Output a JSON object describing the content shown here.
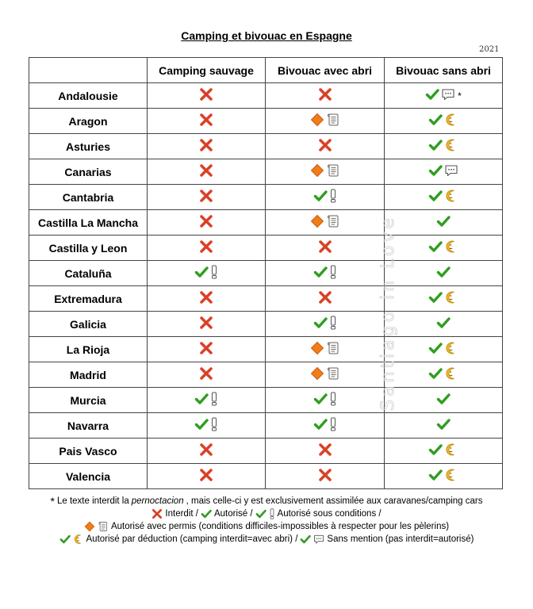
{
  "title": "Camping et bivouac en Espagne",
  "year": "2021",
  "headers": [
    "",
    "Camping sauvage",
    "Bivouac avec abri",
    "Bivouac sans abri"
  ],
  "rows": [
    {
      "region": "Andalousie",
      "cells": [
        [
          "cross"
        ],
        [
          "cross"
        ],
        [
          "check",
          "speech",
          "*"
        ]
      ]
    },
    {
      "region": "Aragon",
      "cells": [
        [
          "cross"
        ],
        [
          "diamond",
          "scroll"
        ],
        [
          "check",
          "moon"
        ]
      ]
    },
    {
      "region": "Asturies",
      "cells": [
        [
          "cross"
        ],
        [
          "cross"
        ],
        [
          "check",
          "moon"
        ]
      ]
    },
    {
      "region": "Canarias",
      "cells": [
        [
          "cross"
        ],
        [
          "diamond",
          "scroll"
        ],
        [
          "check",
          "speech"
        ]
      ]
    },
    {
      "region": "Cantabria",
      "cells": [
        [
          "cross"
        ],
        [
          "check",
          "exclaim"
        ],
        [
          "check",
          "moon"
        ]
      ]
    },
    {
      "region": "Castilla La Mancha",
      "cells": [
        [
          "cross"
        ],
        [
          "diamond",
          "scroll"
        ],
        [
          "check"
        ]
      ]
    },
    {
      "region": "Castilla y Leon",
      "cells": [
        [
          "cross"
        ],
        [
          "cross"
        ],
        [
          "check",
          "moon"
        ]
      ]
    },
    {
      "region": "Cataluña",
      "cells": [
        [
          "check",
          "exclaim"
        ],
        [
          "check",
          "exclaim"
        ],
        [
          "check"
        ]
      ]
    },
    {
      "region": "Extremadura",
      "cells": [
        [
          "cross"
        ],
        [
          "cross"
        ],
        [
          "check",
          "moon"
        ]
      ]
    },
    {
      "region": "Galicia",
      "cells": [
        [
          "cross"
        ],
        [
          "check",
          "exclaim"
        ],
        [
          "check"
        ]
      ]
    },
    {
      "region": "La Rioja",
      "cells": [
        [
          "cross"
        ],
        [
          "diamond",
          "scroll"
        ],
        [
          "check",
          "moon"
        ]
      ]
    },
    {
      "region": "Madrid",
      "cells": [
        [
          "cross"
        ],
        [
          "diamond",
          "scroll"
        ],
        [
          "check",
          "moon"
        ]
      ]
    },
    {
      "region": "Murcia",
      "cells": [
        [
          "check",
          "exclaim"
        ],
        [
          "check",
          "exclaim"
        ],
        [
          "check"
        ]
      ]
    },
    {
      "region": "Navarra",
      "cells": [
        [
          "check",
          "exclaim"
        ],
        [
          "check",
          "exclaim"
        ],
        [
          "check"
        ]
      ]
    },
    {
      "region": "Pais Vasco",
      "cells": [
        [
          "cross"
        ],
        [
          "cross"
        ],
        [
          "check",
          "moon"
        ]
      ]
    },
    {
      "region": "Valencia",
      "cells": [
        [
          "cross"
        ],
        [
          "cross"
        ],
        [
          "check",
          "moon"
        ]
      ]
    }
  ],
  "legend": {
    "note_star": "*",
    "note_a": "Le texte interdit la ",
    "note_em": "pernoctacion",
    "note_b": ", mais celle-ci y est exclusivement assimilée aux caravanes/camping cars",
    "interdit": "Interdit / ",
    "autorise": "Autorisé / ",
    "sous_conditions": "Autorisé sous conditions /",
    "avec_permis": "Autorisé avec permis (conditions difficiles-impossibles à respecter pour les pèlerins)",
    "deduction": "Autorisé par déduction (camping interdit=avec abri) / ",
    "sans_mention": "Sans mention (pas interdit=autorisé)"
  },
  "watermark": "Santiago in Love",
  "colors": {
    "cross": "#e0452b",
    "check": "#2f9e1f",
    "diamond": "#f07d1a",
    "moon": "#f5b921"
  }
}
